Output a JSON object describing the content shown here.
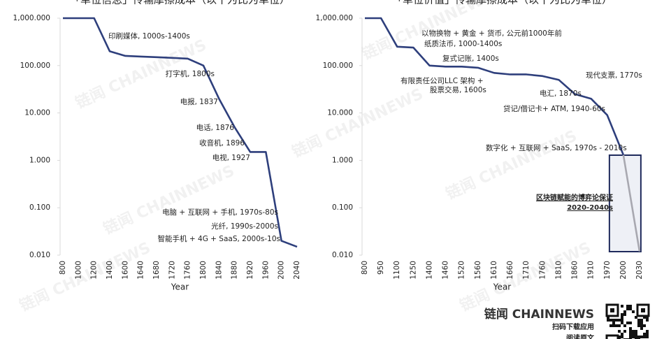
{
  "chart_data": [
    {
      "type": "line",
      "log_y": true,
      "title": "「单位信息」传输摩擦成本（以十为比为单位）",
      "x_label": "Year",
      "categories": [
        "800",
        "1000",
        "1200",
        "1400",
        "1600",
        "1640",
        "1680",
        "1720",
        "1760",
        "1800",
        "1840",
        "1880",
        "1920",
        "1960",
        "2000",
        "2040"
      ],
      "series": [
        {
          "color": "#2e3f7c",
          "values": [
            1000,
            1000,
            1000,
            200,
            160,
            155,
            150,
            145,
            140,
            100,
            20,
            5,
            1.5,
            1.5,
            0.02,
            0.015
          ]
        }
      ],
      "ylim": [
        0.01,
        1000
      ],
      "yticks": [
        {
          "value": 1000,
          "label": "1,000.000"
        },
        {
          "value": 100,
          "label": "100.000"
        },
        {
          "value": 10,
          "label": "10.000"
        },
        {
          "value": 1,
          "label": "1.000"
        },
        {
          "value": 0.1,
          "label": "0.100"
        },
        {
          "value": 0.01,
          "label": "0.010"
        }
      ],
      "annotations": [
        "印刷媒体, 1000s-1400s",
        "打字机, 1800s",
        "电报, 1837",
        "电话, 1876",
        "收音机, 1896",
        "电视, 1927",
        "电脑 + 互联网 + 手机, 1970s-80s",
        "光纤, 1990s-2000s",
        "智能手机 + 4G + SaaS, 2000s-10s"
      ]
    },
    {
      "type": "line",
      "log_y": true,
      "title": "「单位价值」传输摩擦成本（以十为比为单位）",
      "x_label": "Year",
      "categories": [
        "800",
        "950",
        "1100",
        "1250",
        "1400",
        "1460",
        "1520",
        "1560",
        "1610",
        "1660",
        "1710",
        "1760",
        "1810",
        "1860",
        "1910",
        "1970",
        "2000",
        "2030"
      ],
      "series": [
        {
          "color": "#2e3f7c",
          "values": [
            1000,
            1000,
            250,
            240,
            100,
            95,
            95,
            90,
            70,
            65,
            65,
            60,
            50,
            25,
            20,
            9,
            1.3,
            null
          ]
        },
        {
          "color": "#a8a8b0",
          "values": [
            null,
            null,
            null,
            null,
            null,
            null,
            null,
            null,
            null,
            null,
            null,
            null,
            null,
            null,
            null,
            null,
            1.3,
            0.012
          ]
        }
      ],
      "ylim": [
        0.01,
        1000
      ],
      "yticks": [
        {
          "value": 1000,
          "label": "1,000.000"
        },
        {
          "value": 100,
          "label": "100.000"
        },
        {
          "value": 10,
          "label": "10.000"
        },
        {
          "value": 1,
          "label": "1.000"
        },
        {
          "value": 0.1,
          "label": "0.100"
        },
        {
          "value": 0.01,
          "label": "0.010"
        }
      ],
      "annotations": [
        "以物换物 + 黄金 + 货币, 公元前1000年前",
        "纸质法币, 1000-1400s",
        "复式记账, 1400s",
        "有限责任公司LLC 架构  +",
        "股票交易, 1600s",
        "现代支票, 1770s",
        "电汇, 1870s",
        "贷记/借记卡+ ATM, 1940-60s",
        "数字化 + 互联网 + SaaS, 1970s - 2010s"
      ],
      "box_label": [
        "区块链赋能的博弈论保证",
        "2020-2040s"
      ]
    }
  ],
  "footer": {
    "brand": "链闻 CHAINNEWS",
    "line1": "扫码下载应用",
    "line2": "阅读原文"
  },
  "watermark": "链闻 CHAINNEWS"
}
